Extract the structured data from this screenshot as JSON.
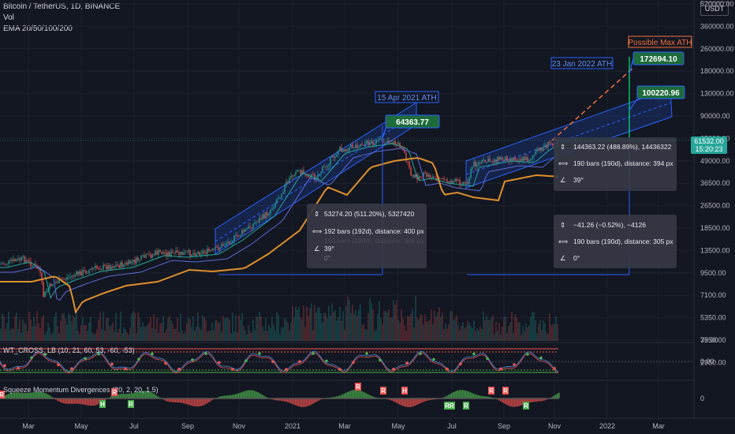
{
  "header": {
    "title": "Bitcoin / TetherUS, 1D, BINANCE",
    "vol_label": "Vol",
    "ema_label": "EMA 20/50/100/200",
    "currency_badge": "USDT"
  },
  "chart_data": {
    "type": "candlestick",
    "symbol": "Bitcoin / TetherUS, 1D, BINANCE",
    "y_scale": "log",
    "price_axis_ticks": [
      "520000.00",
      "360000.00",
      "260000.00",
      "180000.00",
      "130000.00",
      "90000.00",
      "65000.00",
      "49000.00",
      "36500.00",
      "26500.00",
      "18500.00",
      "13500.00",
      "9500.00",
      "7100.00",
      "5350.00",
      "3950.00",
      "2950.00"
    ],
    "current_price": "61532.00",
    "current_countdown": "15:20:23",
    "time_axis_ticks": [
      "Mar",
      "May",
      "Jul",
      "Sep",
      "Nov",
      "2021",
      "Mar",
      "May",
      "Jul",
      "Sep",
      "Nov",
      "2022",
      "Mar"
    ],
    "callouts": [
      {
        "label": "15 Apr 2021 ATH",
        "price": "64363.77"
      },
      {
        "label": "23 Jan 2022 ATH",
        "price": "100220.96"
      },
      {
        "label": "Possible Max ATH",
        "price": "172694.10"
      }
    ],
    "measure_tooltips": [
      {
        "range": "53274.20 (511.20%), 5327420",
        "bars": "192 bars (192d), distance: 400 px",
        "angle": "39°",
        "ghost_bars": "190 bars (190d), distance: 305 px",
        "ghost_angle": "0°"
      },
      {
        "range": "144363.22 (488.89%), 14436322",
        "bars": "190 bars (190d), distance: 394 px",
        "angle": "39°"
      },
      {
        "range": "−41.26 (−0.52%), −4126",
        "bars": "190 bars (190d), distance: 305 px",
        "angle": "0°"
      }
    ],
    "indicators": [
      {
        "name": "WT_CROSS_LB (10, 21, 60, 53, -60, -53)",
        "ticks": [
          "75.00",
          "0.00"
        ]
      },
      {
        "name": "Squeeze Momentum Divergences (20, 2, 20, 1.5)",
        "ticks": [
          "0"
        ]
      }
    ],
    "ema_colors": {
      "ema20": "#26a69a",
      "ema50": "#5d6bd8",
      "ema100": "#f7a600",
      "ema200": "#e0902c"
    },
    "candle_colors": {
      "up": "#26a69a",
      "down": "#ef5350"
    }
  }
}
